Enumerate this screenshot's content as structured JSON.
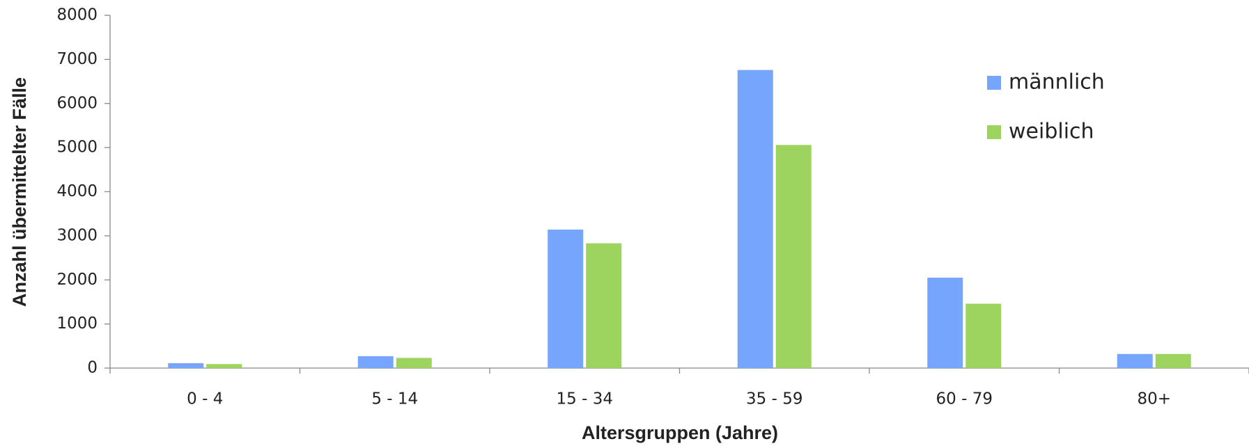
{
  "chart_data": {
    "type": "bar",
    "x_label": "Altersgruppen (Jahre)",
    "y_label": "Anzahl übermittelter Fälle",
    "categories": [
      "0 - 4",
      "5 - 14",
      "15 - 34",
      "35 - 59",
      "60 - 79",
      "80+"
    ],
    "series": [
      {
        "name": "männlich",
        "color": "#76a5fd",
        "values": [
          110,
          270,
          3140,
          6760,
          2050,
          320
        ]
      },
      {
        "name": "weiblich",
        "color": "#9dd45e",
        "values": [
          90,
          230,
          2830,
          5060,
          1460,
          320
        ]
      }
    ],
    "ylim": [
      0,
      8000
    ],
    "yticks": [
      0,
      1000,
      2000,
      3000,
      4000,
      5000,
      6000,
      7000,
      8000
    ],
    "grid": false,
    "legend": "upper right"
  }
}
